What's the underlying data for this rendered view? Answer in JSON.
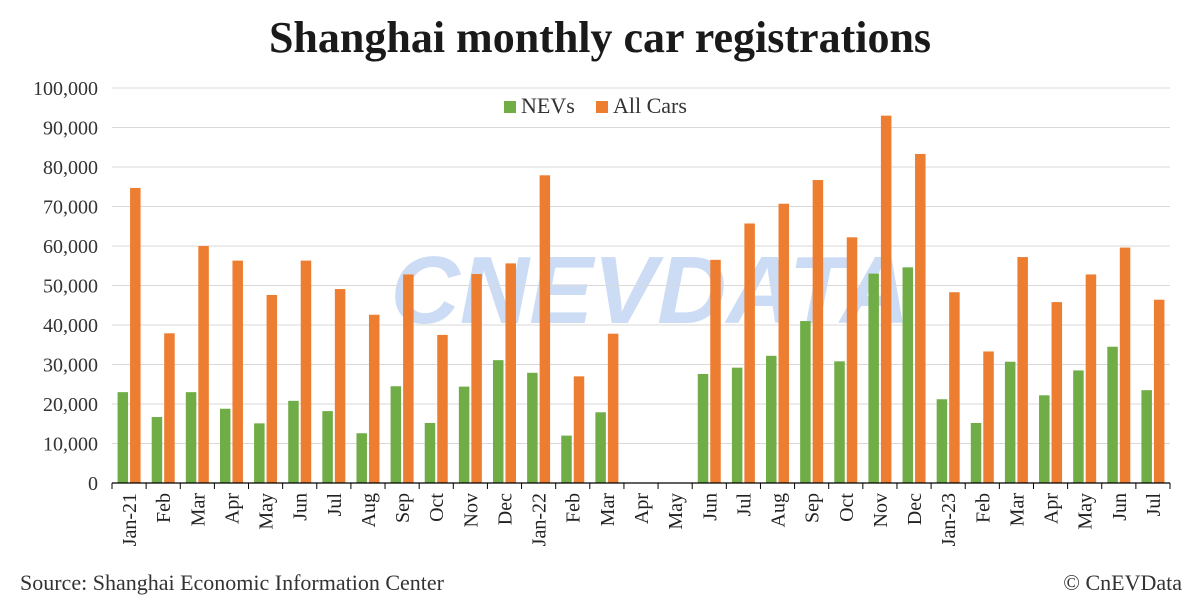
{
  "title": "Shanghai monthly car registrations",
  "source": "Source: Shanghai Economic Information Center",
  "credit": "© CnEVData",
  "watermark": "CNEVDATA",
  "colors": {
    "nev": "#70AD47",
    "all": "#ED7D31",
    "grid": "#D9D9D9",
    "axis": "#000000",
    "watermark": "#8FB3E8"
  },
  "chart_data": {
    "type": "bar",
    "title": "Shanghai monthly car registrations",
    "xlabel": "",
    "ylabel": "",
    "ylim": [
      0,
      100000
    ],
    "yticks": [
      0,
      10000,
      20000,
      30000,
      40000,
      50000,
      60000,
      70000,
      80000,
      90000,
      100000
    ],
    "ytick_labels": [
      "0",
      "10,000",
      "20,000",
      "30,000",
      "40,000",
      "50,000",
      "60,000",
      "70,000",
      "80,000",
      "90,000",
      "100,000"
    ],
    "grid": true,
    "legend_position": "top-center",
    "categories": [
      "Jan-21",
      "Feb",
      "Mar",
      "Apr",
      "May",
      "Jun",
      "Jul",
      "Aug",
      "Sep",
      "Oct",
      "Nov",
      "Dec",
      "Jan-22",
      "Feb",
      "Mar",
      "Apr",
      "May",
      "Jun",
      "Jul",
      "Aug",
      "Sep",
      "Oct",
      "Nov",
      "Dec",
      "Jan-23",
      "Feb",
      "Mar",
      "Apr",
      "May",
      "Jun",
      "Jul"
    ],
    "series": [
      {
        "name": "NEVs",
        "values": [
          23000,
          16700,
          23000,
          18800,
          15100,
          20800,
          18200,
          12600,
          24500,
          15200,
          24400,
          31100,
          27900,
          12000,
          17900,
          0,
          0,
          27600,
          29200,
          32200,
          41000,
          30800,
          53000,
          54600,
          21200,
          15200,
          30700,
          22200,
          28500,
          34500,
          23500
        ]
      },
      {
        "name": "All Cars",
        "values": [
          74700,
          37900,
          60000,
          56300,
          47600,
          56300,
          49100,
          42600,
          52800,
          37500,
          52900,
          55600,
          77900,
          27000,
          37800,
          0,
          0,
          56500,
          65700,
          70700,
          76700,
          62200,
          93000,
          83300,
          48300,
          33300,
          57200,
          45800,
          52800,
          59600,
          46400
        ]
      }
    ]
  }
}
